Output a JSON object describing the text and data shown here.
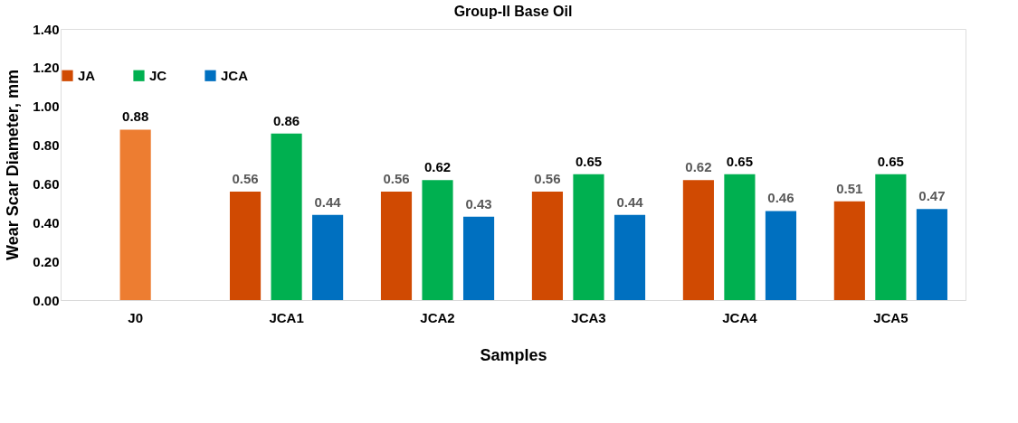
{
  "chart_data": {
    "type": "bar",
    "title": "Group-II Base Oil",
    "xlabel": "Samples",
    "ylabel": "Wear Scar Diameter, mm",
    "categories": [
      "J0",
      "JCA1",
      "JCA2",
      "JCA3",
      "JCA4",
      "JCA5"
    ],
    "series": [
      {
        "name": "JA",
        "color": "#d04a02",
        "values": [
          null,
          0.56,
          0.56,
          0.56,
          0.62,
          0.51
        ]
      },
      {
        "name": "JC",
        "color": "#00b050",
        "colors": [
          "#ed7d31",
          "#00b050",
          "#00b050",
          "#00b050",
          "#00b050",
          "#00b050"
        ],
        "values": [
          0.88,
          0.86,
          0.62,
          0.65,
          0.65,
          0.65
        ]
      },
      {
        "name": "JCA",
        "color": "#0070c0",
        "values": [
          null,
          0.44,
          0.43,
          0.44,
          0.46,
          0.47
        ]
      }
    ],
    "ylim": [
      0,
      1.4
    ],
    "yticks": [
      {
        "value": 0,
        "label": "0.00"
      },
      {
        "value": 0.2,
        "label": "0.20"
      },
      {
        "value": 0.4,
        "label": "0.40"
      },
      {
        "value": 0.6,
        "label": "0.60"
      },
      {
        "value": 0.8,
        "label": "0.80"
      },
      {
        "value": 1.0,
        "label": "1.00"
      },
      {
        "value": 1.2,
        "label": "1.20"
      },
      {
        "value": 1.4,
        "label": "1.40"
      }
    ],
    "data_labels": true,
    "legend": "top",
    "grid": false
  }
}
